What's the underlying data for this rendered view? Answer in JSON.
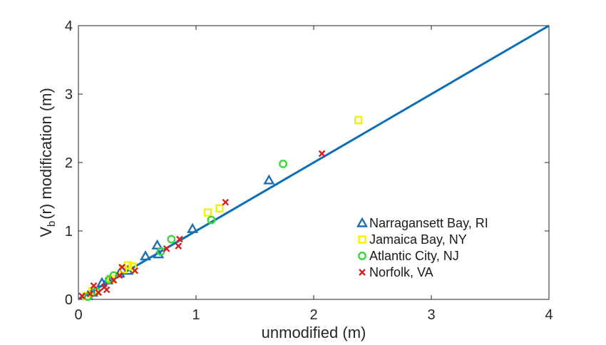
{
  "chart_data": {
    "type": "scatter",
    "title": "",
    "xlabel": "unmodified (m)",
    "ylabel_main": "V",
    "ylabel_sub": "b",
    "ylabel_rest": "(r) modification (m)",
    "xlim": [
      0,
      4
    ],
    "ylim": [
      0,
      4
    ],
    "xticks": [
      "0",
      "1",
      "2",
      "3",
      "4"
    ],
    "yticks": [
      "0",
      "1",
      "2",
      "3",
      "4"
    ],
    "grid": false,
    "legend_position": "lower-right",
    "reference_line": {
      "x": [
        0,
        4
      ],
      "y": [
        0,
        4
      ],
      "color": "#0b6fb8"
    },
    "series": [
      {
        "name": "Narragansett Bay, RI",
        "marker": "triangle",
        "color": "#1f6fb5",
        "points": [
          [
            0.08,
            0.05
          ],
          [
            0.12,
            0.1
          ],
          [
            0.2,
            0.24
          ],
          [
            0.25,
            0.28
          ],
          [
            0.35,
            0.38
          ],
          [
            0.42,
            0.42
          ],
          [
            0.57,
            0.63
          ],
          [
            0.67,
            0.79
          ],
          [
            0.68,
            0.66
          ],
          [
            0.97,
            1.03
          ],
          [
            1.62,
            1.74
          ]
        ]
      },
      {
        "name": "Jamaica Bay, NY",
        "marker": "square",
        "color": "#f2f200",
        "points": [
          [
            0.07,
            0.05
          ],
          [
            0.12,
            0.12
          ],
          [
            0.28,
            0.3
          ],
          [
            0.38,
            0.44
          ],
          [
            0.42,
            0.5
          ],
          [
            0.46,
            0.48
          ],
          [
            1.1,
            1.27
          ],
          [
            1.2,
            1.33
          ],
          [
            2.38,
            2.62
          ]
        ]
      },
      {
        "name": "Atlantic City, NJ",
        "marker": "circle",
        "color": "#3ed63e",
        "points": [
          [
            0.08,
            0.04
          ],
          [
            0.15,
            0.12
          ],
          [
            0.26,
            0.29
          ],
          [
            0.3,
            0.35
          ],
          [
            0.7,
            0.7
          ],
          [
            0.79,
            0.88
          ],
          [
            1.13,
            1.16
          ],
          [
            1.74,
            1.98
          ]
        ]
      },
      {
        "name": "Norfolk, VA",
        "marker": "x",
        "color": "#d42020",
        "points": [
          [
            0.03,
            0.05
          ],
          [
            0.1,
            0.08
          ],
          [
            0.13,
            0.2
          ],
          [
            0.17,
            0.1
          ],
          [
            0.22,
            0.18
          ],
          [
            0.24,
            0.14
          ],
          [
            0.3,
            0.28
          ],
          [
            0.35,
            0.35
          ],
          [
            0.37,
            0.47
          ],
          [
            0.48,
            0.42
          ],
          [
            0.75,
            0.74
          ],
          [
            0.85,
            0.78
          ],
          [
            0.86,
            0.88
          ],
          [
            1.25,
            1.42
          ],
          [
            2.07,
            2.13
          ]
        ]
      }
    ]
  }
}
